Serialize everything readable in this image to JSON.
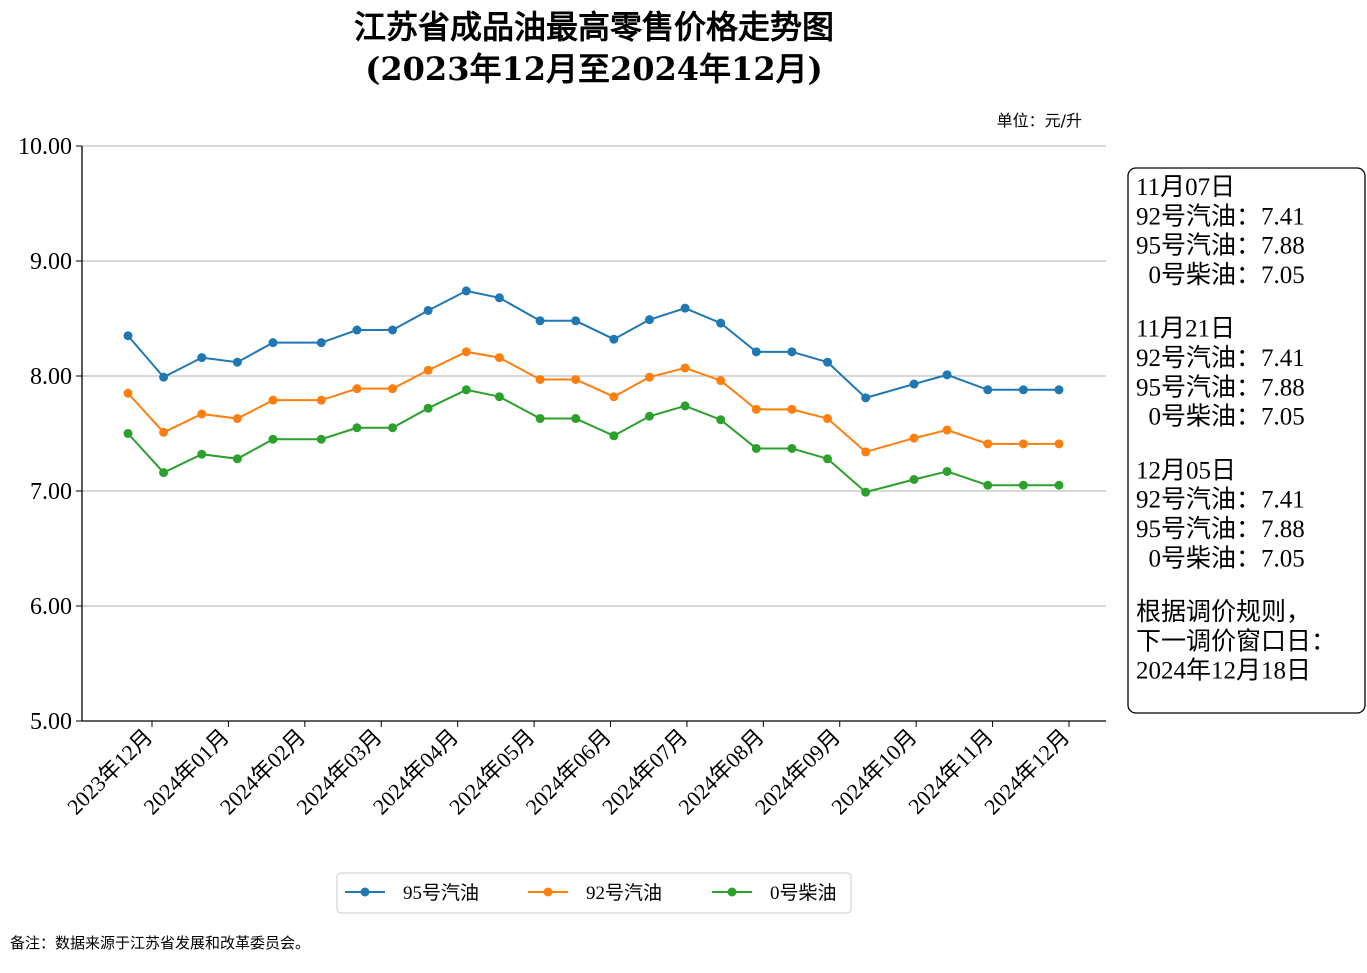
{
  "chart_data": {
    "type": "line",
    "title": "江苏省成品油最高零售价格走势图",
    "subtitle": "(2023年12月至2024年12月)",
    "unit_label": "单位：元/升",
    "ylim": [
      5.0,
      10.0
    ],
    "yticks": [
      "5.00",
      "6.00",
      "7.00",
      "8.00",
      "9.00",
      "10.00"
    ],
    "grid": true,
    "xtick_labels": [
      "2023年12月",
      "2024年01月",
      "2024年02月",
      "2024年03月",
      "2024年04月",
      "2024年05月",
      "2024年06月",
      "2024年07月",
      "2024年08月",
      "2024年09月",
      "2024年10月",
      "2024年11月",
      "2024年12月"
    ],
    "x": [
      "2023-12-05",
      "2023-12-19",
      "2024-01-03",
      "2024-01-17",
      "2024-01-31",
      "2024-02-19",
      "2024-03-04",
      "2024-03-18",
      "2024-04-01",
      "2024-04-16",
      "2024-04-29",
      "2024-05-15",
      "2024-05-29",
      "2024-06-13",
      "2024-06-27",
      "2024-07-11",
      "2024-07-25",
      "2024-08-08",
      "2024-08-22",
      "2024-09-05",
      "2024-09-20",
      "2024-10-09",
      "2024-10-22",
      "2024-11-07",
      "2024-11-21",
      "2024-12-05"
    ],
    "series": [
      {
        "name": "95号汽油",
        "color": "#1f77b4",
        "values": [
          8.35,
          7.99,
          8.16,
          8.12,
          8.29,
          8.29,
          8.4,
          8.4,
          8.57,
          8.74,
          8.68,
          8.48,
          8.48,
          8.32,
          8.49,
          8.59,
          8.46,
          8.21,
          8.21,
          8.12,
          7.81,
          7.93,
          8.01,
          7.88,
          7.88,
          7.88
        ]
      },
      {
        "name": "92号汽油",
        "color": "#ff7f0e",
        "values": [
          7.85,
          7.51,
          7.67,
          7.63,
          7.79,
          7.79,
          7.89,
          7.89,
          8.05,
          8.21,
          8.16,
          7.97,
          7.97,
          7.82,
          7.99,
          8.07,
          7.96,
          7.71,
          7.71,
          7.63,
          7.34,
          7.46,
          7.53,
          7.41,
          7.41,
          7.41
        ]
      },
      {
        "name": "0号柴油",
        "color": "#2ca02c",
        "values": [
          7.5,
          7.16,
          7.32,
          7.28,
          7.45,
          7.45,
          7.55,
          7.55,
          7.72,
          7.88,
          7.82,
          7.63,
          7.63,
          7.48,
          7.65,
          7.74,
          7.62,
          7.37,
          7.37,
          7.28,
          6.99,
          7.1,
          7.17,
          7.05,
          7.05,
          7.05
        ]
      }
    ],
    "legend": {
      "placement": "bottom-center",
      "entries": [
        "95号汽油",
        "92号汽油",
        "0号柴油"
      ]
    },
    "annotation": {
      "lines": [
        "11月07日",
        "92号汽油：7.41",
        "95号汽油：7.88",
        "  0号柴油：7.05",
        "",
        "11月21日",
        "92号汽油：7.41",
        "95号汽油：7.88",
        "  0号柴油：7.05",
        "",
        "12月05日",
        "92号汽油：7.41",
        "95号汽油：7.88",
        "  0号柴油：7.05",
        "",
        "根据调价规则，",
        "下一调价窗口日：",
        "2024年12月18日"
      ]
    },
    "footnote": "备注：数据来源于江苏省发展和改革委员会。"
  }
}
